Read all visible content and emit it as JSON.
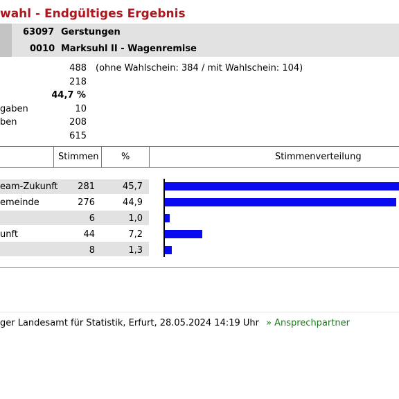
{
  "title": "wahl - Endgültiges Ergebnis",
  "header": {
    "row1_code": "63097",
    "row1_name": "Gerstungen",
    "row2_code": "0010",
    "row2_name": "Marksuhl II - Wagenremise"
  },
  "summary": [
    {
      "label": "",
      "value": "488",
      "note": "(ohne Wahlschein: 384 / mit Wahlschein: 104)",
      "bold": false
    },
    {
      "label": "",
      "value": "218",
      "note": "",
      "bold": false
    },
    {
      "label": "",
      "value": "44,7 %",
      "note": "",
      "bold": true
    },
    {
      "label": "gaben",
      "value": "10",
      "note": "",
      "bold": false
    },
    {
      "label": "ben",
      "value": "208",
      "note": "",
      "bold": false
    },
    {
      "label": "",
      "value": "615",
      "note": "",
      "bold": false
    }
  ],
  "table": {
    "col_stimmen": "Stimmen",
    "col_percent": "%",
    "col_verteilung": "Stimmenverteilung",
    "rows": [
      {
        "name": "eam-Zukunft",
        "stimmen": "281",
        "percent": "45,7",
        "pct_value": 45.7
      },
      {
        "name": "emeinde",
        "stimmen": "276",
        "percent": "44,9",
        "pct_value": 44.9
      },
      {
        "name": "",
        "stimmen": "6",
        "percent": "1,0",
        "pct_value": 1.0
      },
      {
        "name": "unft",
        "stimmen": "44",
        "percent": "7,2",
        "pct_value": 7.2
      },
      {
        "name": "",
        "stimmen": "8",
        "percent": "1,3",
        "pct_value": 1.3
      }
    ]
  },
  "colors": {
    "title": "#b0141c",
    "bar": "#0a0af0",
    "contact": "#1a7a1a"
  },
  "footer": {
    "source": "ger Landesamt für Statistik, Erfurt, 28.05.2024 14:19 Uhr",
    "contact": "» Ansprechpartner"
  }
}
